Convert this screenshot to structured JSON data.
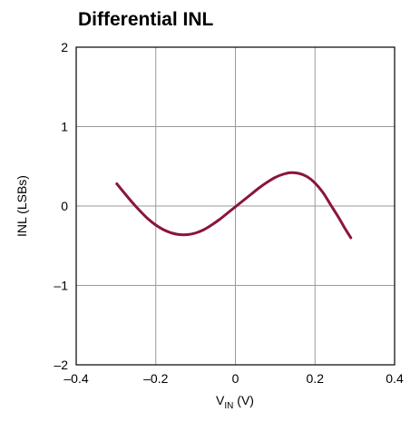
{
  "chart_data": {
    "type": "line",
    "title": "Differential INL",
    "xlabel_main": "V",
    "xlabel_sub": "IN",
    "xlabel_unit": " (V)",
    "ylabel": "INL (LSBs)",
    "xlim": [
      -0.4,
      0.4
    ],
    "ylim": [
      -2,
      2
    ],
    "x_ticks": [
      -0.4,
      -0.2,
      0,
      0.2,
      0.4
    ],
    "x_tick_labels": [
      "–0.4",
      "–0.2",
      "0",
      "0.2",
      "0.4"
    ],
    "y_ticks": [
      -2,
      -1,
      0,
      1,
      2
    ],
    "y_tick_labels": [
      "–2",
      "–1",
      "0",
      "1",
      "2"
    ],
    "grid": true,
    "series": [
      {
        "color": "#8b1538",
        "x": [
          -0.298,
          -0.28,
          -0.26,
          -0.24,
          -0.22,
          -0.2,
          -0.18,
          -0.16,
          -0.14,
          -0.12,
          -0.1,
          -0.08,
          -0.06,
          -0.04,
          -0.02,
          0.0,
          0.02,
          0.04,
          0.06,
          0.08,
          0.1,
          0.12,
          0.14,
          0.16,
          0.18,
          0.2,
          0.22,
          0.24,
          0.26,
          0.275,
          0.29
        ],
        "y": [
          0.28,
          0.17,
          0.05,
          -0.06,
          -0.16,
          -0.24,
          -0.3,
          -0.34,
          -0.36,
          -0.36,
          -0.34,
          -0.3,
          -0.24,
          -0.17,
          -0.09,
          -0.01,
          0.07,
          0.15,
          0.23,
          0.3,
          0.36,
          0.4,
          0.42,
          0.41,
          0.37,
          0.29,
          0.17,
          0.01,
          -0.15,
          -0.28,
          -0.4
        ]
      }
    ]
  }
}
